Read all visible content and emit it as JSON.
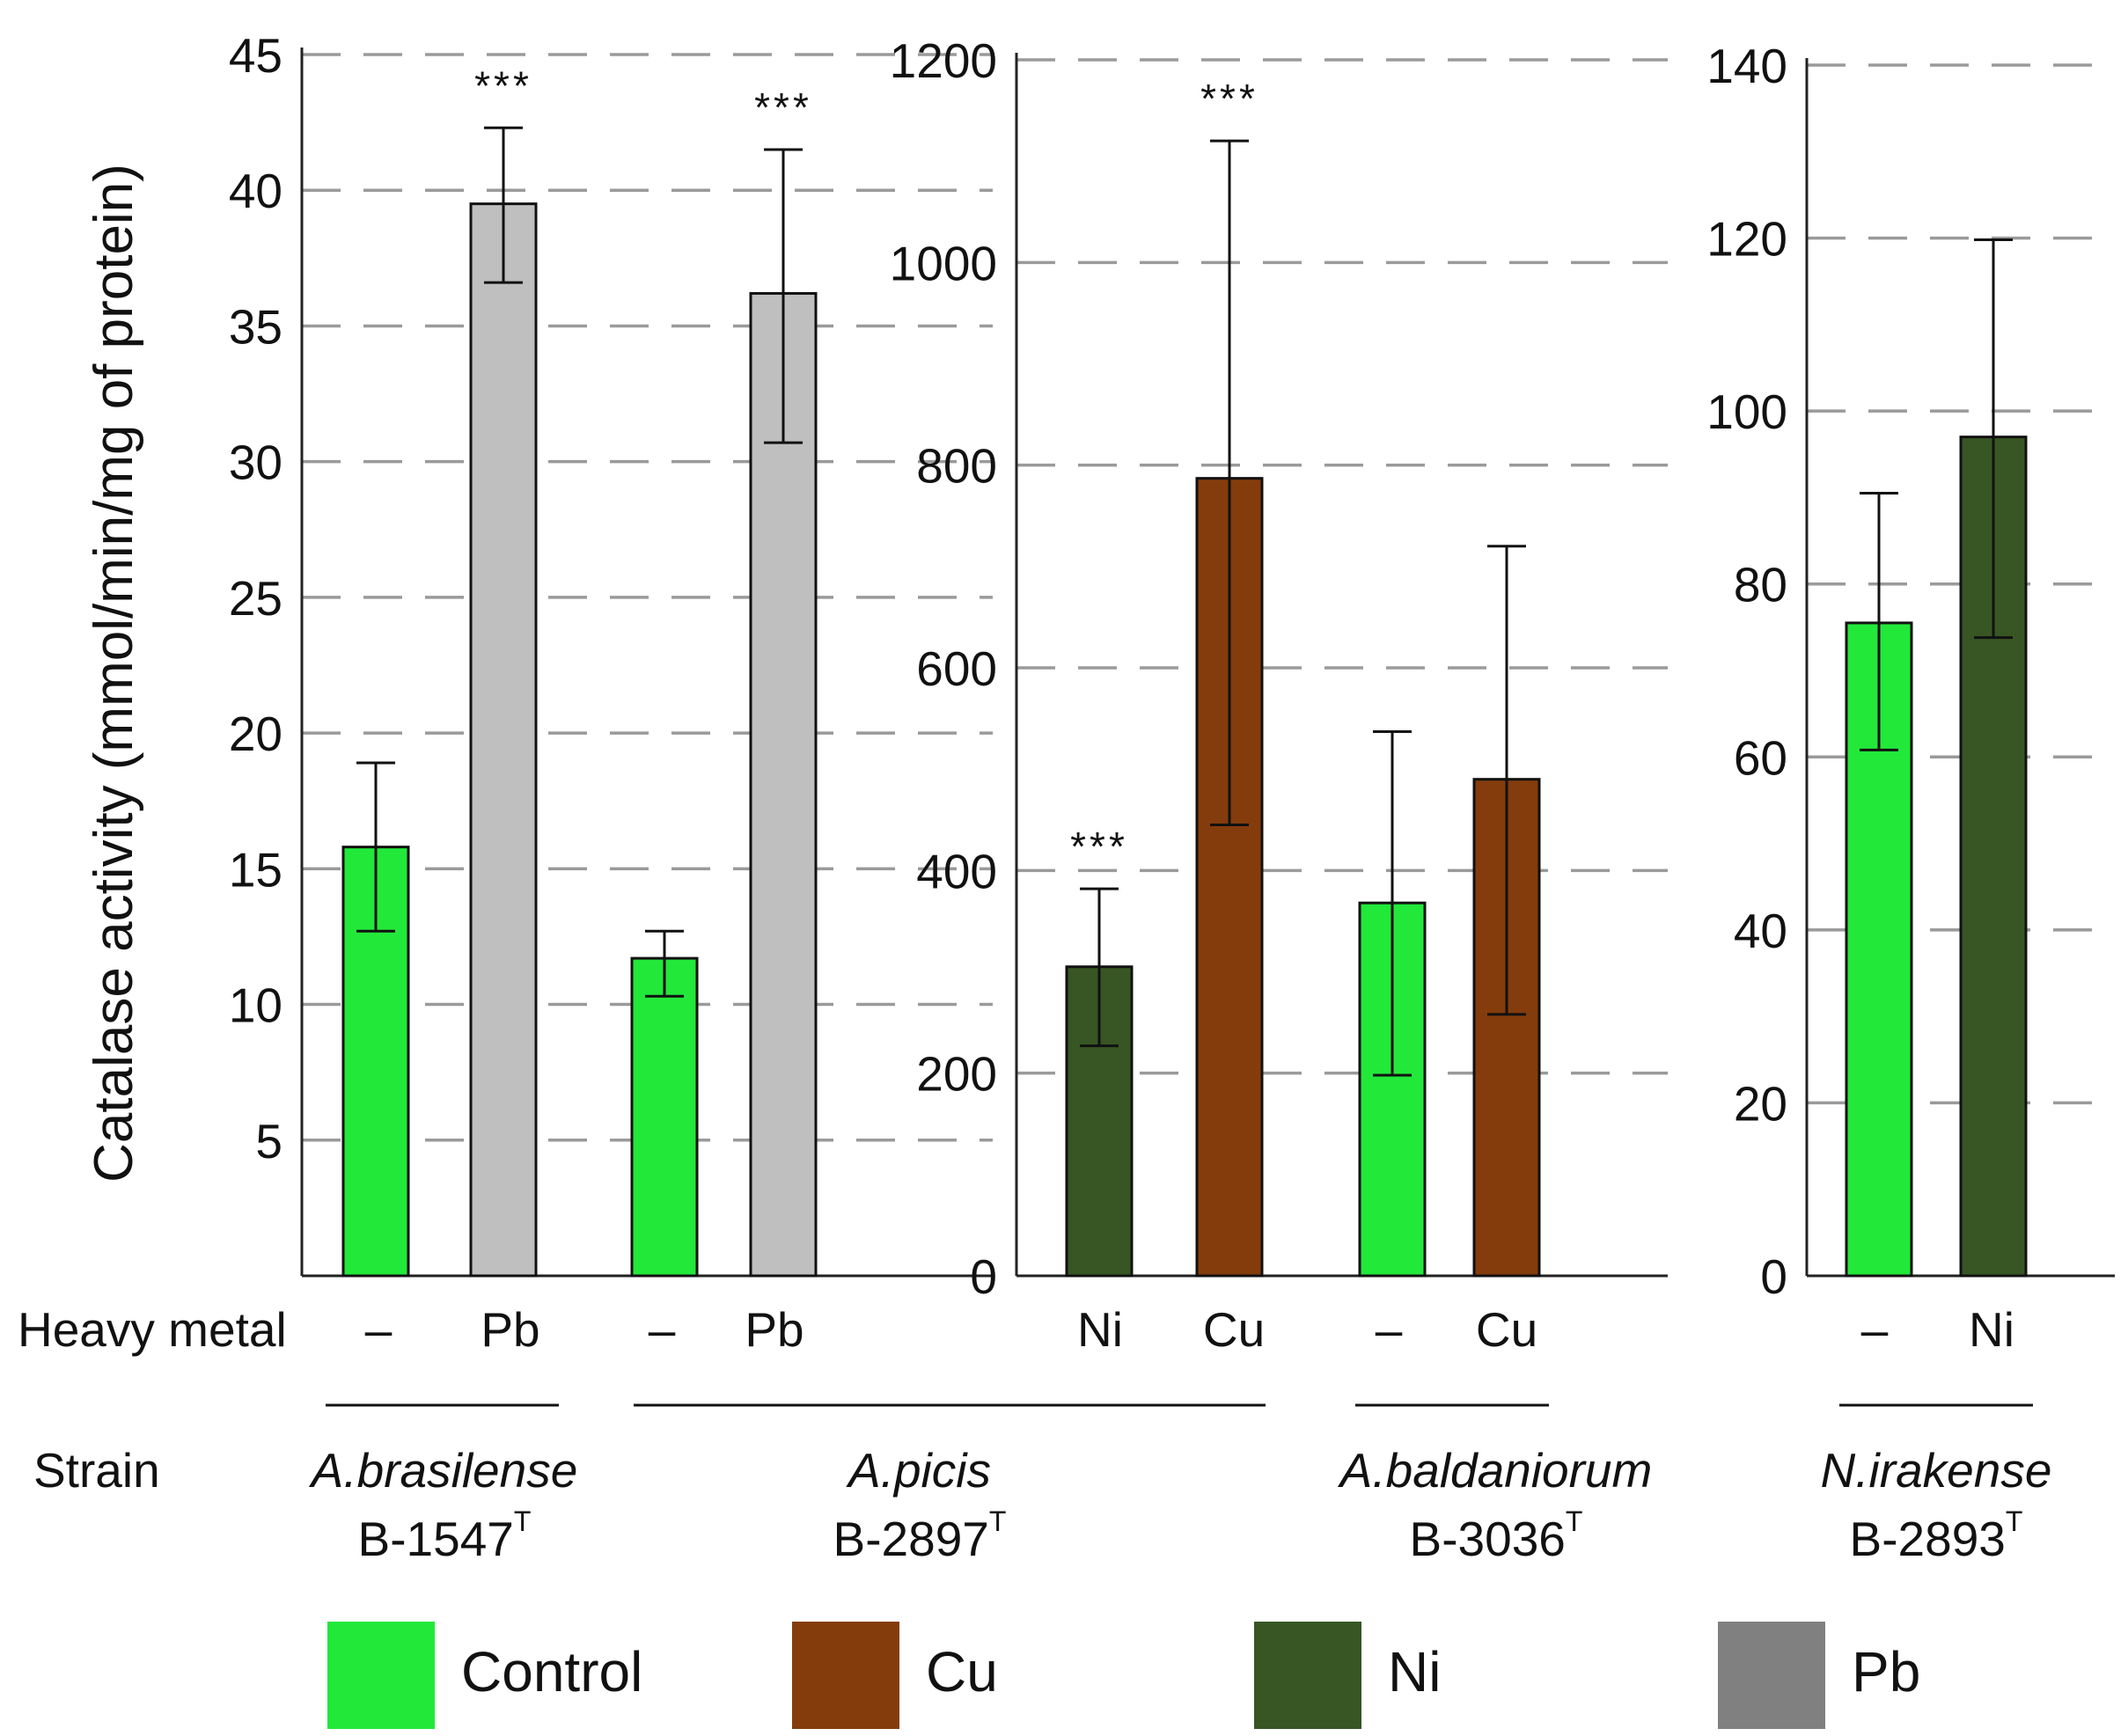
{
  "chart_data": {
    "type": "bar",
    "ylabel": "Catalase activity (mmol/min/mg of protein)",
    "row_labels": {
      "metal": "Heavy metal",
      "strain": "Strain"
    },
    "colors": {
      "Control": "#22e83a",
      "Cu": "#843c0c",
      "Ni": "#375623",
      "Pb": "#bfbfbf",
      "Pb_legend": "#808080"
    },
    "legend": [
      {
        "key": "Control",
        "label": "Control"
      },
      {
        "key": "Cu",
        "label": "Cu"
      },
      {
        "key": "Ni",
        "label": "Ni"
      },
      {
        "key": "Pb",
        "label": "Pb"
      }
    ],
    "panels": [
      {
        "ylim": [
          0,
          45
        ],
        "yticks": [
          5,
          10,
          15,
          20,
          25,
          30,
          35,
          40,
          45
        ],
        "bars": [
          {
            "metal": "–",
            "series": "Control",
            "value": 15.8,
            "err_low": 12.7,
            "err_high": 18.9,
            "sig": ""
          },
          {
            "metal": "Pb",
            "series": "Pb",
            "value": 39.5,
            "err_low": 36.6,
            "err_high": 42.3,
            "sig": "***"
          },
          {
            "metal": "–",
            "series": "Control",
            "value": 11.7,
            "err_low": 10.3,
            "err_high": 12.7,
            "sig": ""
          },
          {
            "metal": "Pb",
            "series": "Pb",
            "value": 36.2,
            "err_low": 30.7,
            "err_high": 41.5,
            "sig": "***"
          }
        ]
      },
      {
        "ylim": [
          0,
          1200
        ],
        "yticks": [
          0,
          200,
          400,
          600,
          800,
          1000,
          1200
        ],
        "bars": [
          {
            "metal": "Ni",
            "series": "Ni",
            "value": 305,
            "err_low": 227,
            "err_high": 382,
            "sig": "***"
          },
          {
            "metal": "Cu",
            "series": "Cu",
            "value": 787,
            "err_low": 445,
            "err_high": 1120,
            "sig": "***"
          },
          {
            "metal": "–",
            "series": "Control",
            "value": 368,
            "err_low": 198,
            "err_high": 537,
            "sig": ""
          },
          {
            "metal": "Cu",
            "series": "Cu",
            "value": 490,
            "err_low": 258,
            "err_high": 720,
            "sig": ""
          }
        ]
      },
      {
        "ylim": [
          0,
          140
        ],
        "yticks": [
          0,
          20,
          40,
          60,
          80,
          100,
          120,
          140
        ],
        "bars": [
          {
            "metal": "–",
            "series": "Control",
            "value": 75.5,
            "err_low": 60.8,
            "err_high": 90.5,
            "sig": ""
          },
          {
            "metal": "Ni",
            "series": "Ni",
            "value": 97,
            "err_low": 73.8,
            "err_high": 119.8,
            "sig": ""
          }
        ]
      }
    ],
    "strains": [
      {
        "name": "A.brasilense",
        "code": "B-1547",
        "sup": "T"
      },
      {
        "name": "A.picis",
        "code": "B-2897",
        "sup": "T"
      },
      {
        "name": "A.baldaniorum",
        "code": "B-3036",
        "sup": "T"
      },
      {
        "name": "N.irakense",
        "code": "B-2893",
        "sup": "T"
      }
    ]
  }
}
